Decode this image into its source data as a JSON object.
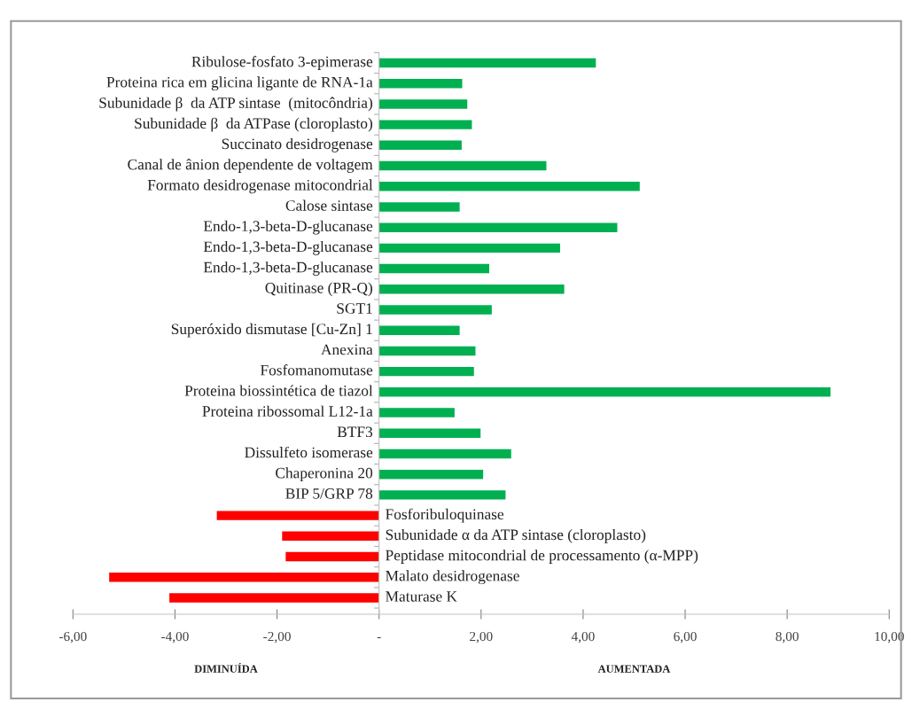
{
  "chart_data": {
    "type": "bar",
    "orientation": "horizontal",
    "categories": [
      "Ribulose-fosfato 3-epimerase",
      "Proteina rica em glicina ligante de RNA-1a",
      "Subunidade β  da ATP sintase  (mitocôndria)",
      "Subunidade β  da ATPase (cloroplasto)",
      "Succinato desidrogenase",
      "Canal de ânion dependente de voltagem",
      "Formato desidrogenase mitocondrial",
      "Calose sintase",
      "Endo-1,3-beta-D-glucanase",
      "Endo-1,3-beta-D-glucanase",
      "Endo-1,3-beta-D-glucanase",
      "Quitinase (PR-Q)",
      "SGT1",
      "Superóxido dismutase [Cu-Zn] 1",
      "Anexina",
      "Fosfomanomutase",
      "Proteina biossintética de tiazol",
      "Proteina ribossomal L12-1a",
      "BTF3",
      "Dissulfeto isomerase",
      "Chaperonina 20",
      "BIP 5/GRP 78",
      "Fosforibuloquinase",
      "Subunidade α da ATP sintase (cloroplasto)",
      "Peptidase mitocondrial de processamento (α-MPP)",
      "Malato desidrogenase",
      "Maturase K"
    ],
    "values": [
      4.25,
      1.63,
      1.73,
      1.82,
      1.62,
      3.28,
      5.11,
      1.58,
      4.67,
      3.55,
      2.16,
      3.63,
      2.21,
      1.58,
      1.89,
      1.86,
      8.85,
      1.48,
      1.99,
      2.59,
      2.04,
      2.48,
      -3.18,
      -1.9,
      -1.83,
      -5.29,
      -4.11
    ],
    "colors": [
      "#00b050",
      "#00b050",
      "#00b050",
      "#00b050",
      "#00b050",
      "#00b050",
      "#00b050",
      "#00b050",
      "#00b050",
      "#00b050",
      "#00b050",
      "#00b050",
      "#00b050",
      "#00b050",
      "#00b050",
      "#00b050",
      "#00b050",
      "#00b050",
      "#00b050",
      "#00b050",
      "#00b050",
      "#00b050",
      "#ff0000",
      "#ff0000",
      "#ff0000",
      "#ff0000",
      "#ff0000"
    ],
    "xlim": [
      -6,
      10
    ],
    "xticks": [
      {
        "value": -6,
        "label": "-6,00"
      },
      {
        "value": -4,
        "label": "-4,00"
      },
      {
        "value": -2,
        "label": "-2,00"
      },
      {
        "value": 0,
        "label": "-"
      },
      {
        "value": 2,
        "label": "2,00"
      },
      {
        "value": 4,
        "label": "4,00"
      },
      {
        "value": 6,
        "label": "6,00"
      },
      {
        "value": 8,
        "label": "8,00"
      },
      {
        "value": 10,
        "label": "10,00"
      }
    ],
    "annotations": [
      "DIMINUÍDA",
      "AUMENTADA"
    ],
    "grid": false,
    "legend": false
  }
}
